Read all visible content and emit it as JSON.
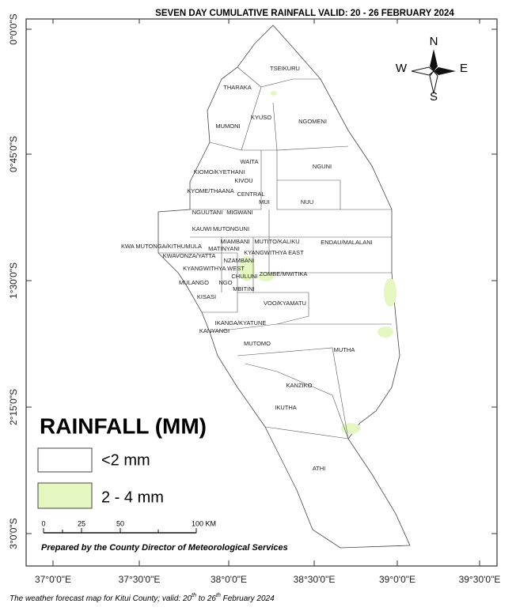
{
  "map": {
    "title": "SEVEN DAY CUMULATIVE RAINFALL VALID: 20 - 26 FEBRUARY 2024",
    "graticule": {
      "latitude": [
        "0°0'0\"S",
        "0°45'0\"S",
        "1°30'0\"S",
        "2°15'0\"S",
        "3°0'0\"S"
      ],
      "longitude": [
        "37°0'0\"E",
        "37°30'0\"E",
        "38°0'0\"E",
        "38°30'0\"E",
        "39°0'0\"E",
        "39°30'0\"E"
      ]
    },
    "compass": {
      "north": "N",
      "south": "S",
      "east": "E",
      "west": "W"
    },
    "wards": [
      "TSEIKURU",
      "THARAKA",
      "KYUSO",
      "NGOMENI",
      "MUMONI",
      "WAITA",
      "NGUNI",
      "KIOMO/KYETHANI",
      "KIVOU",
      "KYOME/THAANA",
      "CENTRAL",
      "MUI",
      "NUU",
      "NGUUTANI",
      "MIGWANI",
      "KAUWI",
      "MUTONGUNI",
      "MIAMBANI",
      "MUTITO/KALIKU",
      "ENDAU/MALALANI",
      "KWA MUTONGA/KITHUMULA",
      "MATINYANI",
      "KYANGWITHYA EAST",
      "KWAVONZA/YATTA",
      "NZAMBANI",
      "KYANGWITHYA WEST",
      "ZOMBE/MWITIKA",
      "CHULUNI",
      "MULANGO",
      "NGO",
      "MBITINI",
      "KISASI",
      "VOO/KYAMATU",
      "IKANGA/KYATUNE",
      "KANYANGI",
      "MUTOMO",
      "MUTHA",
      "KANZIKO",
      "IKUTHA",
      "ATHI"
    ],
    "legend": {
      "title": "RAINFALL (MM)",
      "items": [
        "<2 mm",
        "2 - 4 mm"
      ]
    },
    "scale_bar": {
      "labels": [
        "0",
        "25",
        "50",
        "100 KM"
      ]
    },
    "credit": "Prepared by the County Director of Meteorological Services",
    "caption": [
      "The weather forecast map for Kitui County; valid: 20",
      "th",
      " to 26",
      "th",
      " February 2024"
    ]
  }
}
